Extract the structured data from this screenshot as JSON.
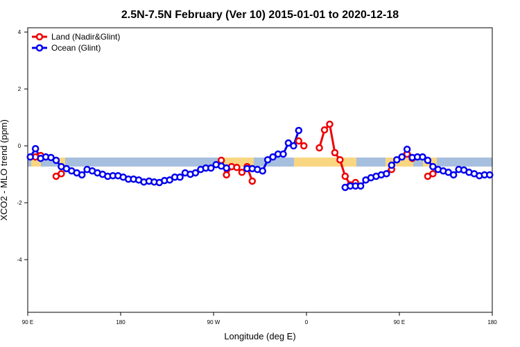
{
  "chart_data": {
    "type": "line",
    "title": "2.5N-7.5N February (Ver 10)   2015-01-01 to 2020-12-18",
    "xlabel": "Longitude (deg E)",
    "ylabel": "XCO2 - MLO trend (ppm)",
    "xlim": [
      90,
      540
    ],
    "ylim": [
      -5.85,
      4.15
    ],
    "xticks": [
      {
        "value": 90,
        "label": "90 E"
      },
      180,
      {
        "value": 270,
        "label": "90 W"
      },
      {
        "value": 360,
        "label": "0"
      },
      {
        "value": 450,
        "label": "90 E"
      },
      {
        "value": 540,
        "label": "180"
      }
    ],
    "yticks": [
      -4,
      -2,
      0,
      2,
      4
    ],
    "legend": "top-left",
    "x": [
      92.5,
      97.5,
      102.5,
      107.5,
      112.5,
      117.5,
      122.5,
      127.5,
      132.5,
      137.5,
      142.5,
      147.5,
      152.5,
      157.5,
      162.5,
      167.5,
      172.5,
      177.5,
      182.5,
      187.5,
      192.5,
      197.5,
      202.5,
      207.5,
      212.5,
      217.5,
      222.5,
      227.5,
      232.5,
      237.5,
      242.5,
      247.5,
      252.5,
      257.5,
      262.5,
      267.5,
      272.5,
      277.5,
      282.5,
      287.5,
      292.5,
      297.5,
      302.5,
      307.5,
      312.5,
      317.5,
      322.5,
      327.5,
      332.5,
      337.5,
      342.5,
      347.5,
      352.5,
      357.5,
      362.5,
      367.5,
      372.5,
      377.5,
      382.5,
      387.5,
      392.5,
      397.5,
      402.5,
      407.5,
      412.5,
      417.5,
      422.5,
      427.5,
      432.5,
      437.5,
      442.5,
      447.5,
      452.5,
      457.5,
      462.5,
      467.5,
      472.5,
      477.5,
      482.5,
      487.5,
      492.5,
      497.5,
      502.5,
      507.5,
      512.5,
      517.5,
      522.5,
      527.5,
      532.5,
      537.5
    ],
    "series": [
      {
        "name": "Land (Nadir&Glint)",
        "color": "#ee0000",
        "values": [
          null,
          -0.39,
          -0.34,
          null,
          null,
          -1.07,
          -0.98,
          null,
          null,
          null,
          null,
          null,
          null,
          null,
          null,
          null,
          null,
          null,
          null,
          null,
          null,
          null,
          null,
          null,
          null,
          null,
          null,
          null,
          null,
          null,
          null,
          null,
          null,
          null,
          null,
          null,
          null,
          -0.51,
          -1.02,
          -0.73,
          -0.76,
          -0.93,
          -0.73,
          -1.24,
          null,
          null,
          null,
          null,
          null,
          null,
          null,
          null,
          0.17,
          0.0,
          null,
          null,
          -0.07,
          0.56,
          0.76,
          -0.24,
          -0.49,
          -1.07,
          -1.37,
          -1.29,
          null,
          null,
          null,
          null,
          null,
          null,
          -0.83,
          null,
          null,
          -0.29,
          -0.44,
          null,
          null,
          -1.07,
          -0.98,
          null,
          null,
          null,
          null,
          null,
          null,
          null,
          null,
          null,
          null,
          null
        ]
      },
      {
        "name": "Ocean (Glint)",
        "color": "#0000ee",
        "values": [
          -0.39,
          -0.1,
          -0.44,
          -0.39,
          -0.41,
          -0.51,
          -0.73,
          -0.8,
          -0.88,
          -0.95,
          -1.02,
          -0.83,
          -0.88,
          -0.95,
          -1.0,
          -1.07,
          -1.05,
          -1.05,
          -1.1,
          -1.17,
          -1.17,
          -1.2,
          -1.27,
          -1.24,
          -1.27,
          -1.29,
          -1.22,
          -1.2,
          -1.1,
          -1.1,
          -0.95,
          -1.0,
          -0.95,
          -0.83,
          -0.78,
          -0.78,
          -0.66,
          -0.71,
          -0.78,
          null,
          null,
          null,
          -0.8,
          -0.8,
          -0.83,
          -0.88,
          -0.49,
          -0.39,
          -0.29,
          -0.29,
          0.1,
          0.0,
          0.54,
          null,
          null,
          null,
          null,
          null,
          null,
          null,
          null,
          -1.46,
          -1.41,
          -1.41,
          -1.41,
          -1.2,
          -1.12,
          -1.07,
          -1.02,
          -0.98,
          -0.68,
          -0.49,
          -0.39,
          -0.12,
          -0.41,
          -0.39,
          -0.39,
          -0.51,
          -0.73,
          -0.83,
          -0.88,
          -0.93,
          -1.02,
          -0.83,
          -0.85,
          -0.93,
          -0.98,
          -1.05,
          -1.02,
          -1.02
        ]
      }
    ]
  }
}
